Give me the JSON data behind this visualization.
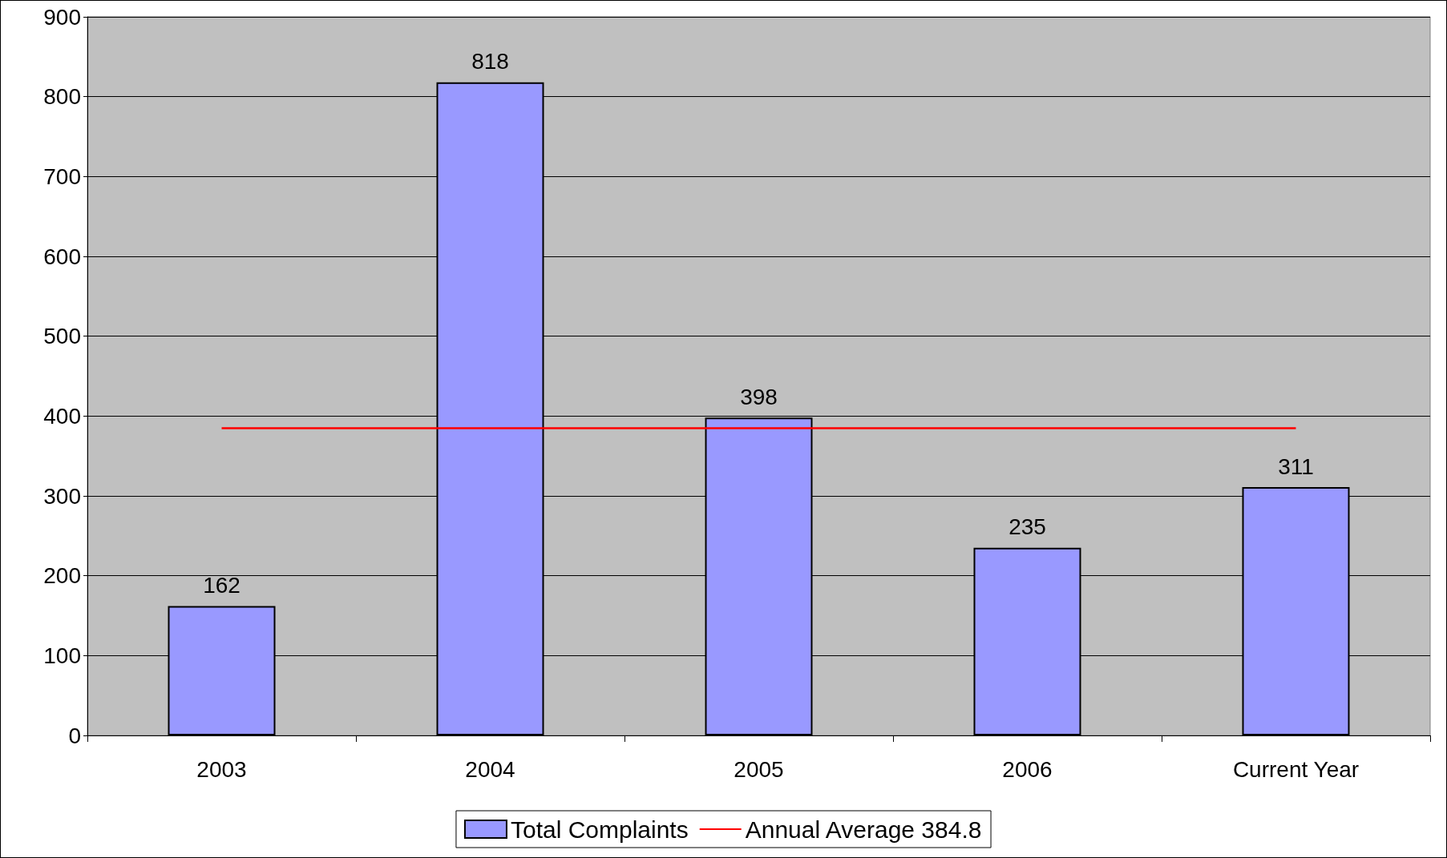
{
  "chart_data": {
    "type": "bar",
    "categories": [
      "2003",
      "2004",
      "2005",
      "2006",
      "Current Year"
    ],
    "series": [
      {
        "name": "Total Complaints",
        "color": "#9999ff",
        "values": [
          162,
          818,
          398,
          235,
          311
        ],
        "value_labels": [
          "162",
          "818",
          "398",
          "235",
          "311"
        ]
      },
      {
        "name": "Annual Average 384.8",
        "type": "line",
        "color": "#ff0000",
        "values": [
          384.8,
          384.8,
          384.8,
          384.8,
          384.8
        ],
        "marker": "none"
      }
    ],
    "ylim": [
      0,
      900
    ],
    "yticks": [
      0,
      100,
      200,
      300,
      400,
      500,
      600,
      700,
      800,
      900
    ],
    "grid": "y",
    "legend": "bottom"
  }
}
